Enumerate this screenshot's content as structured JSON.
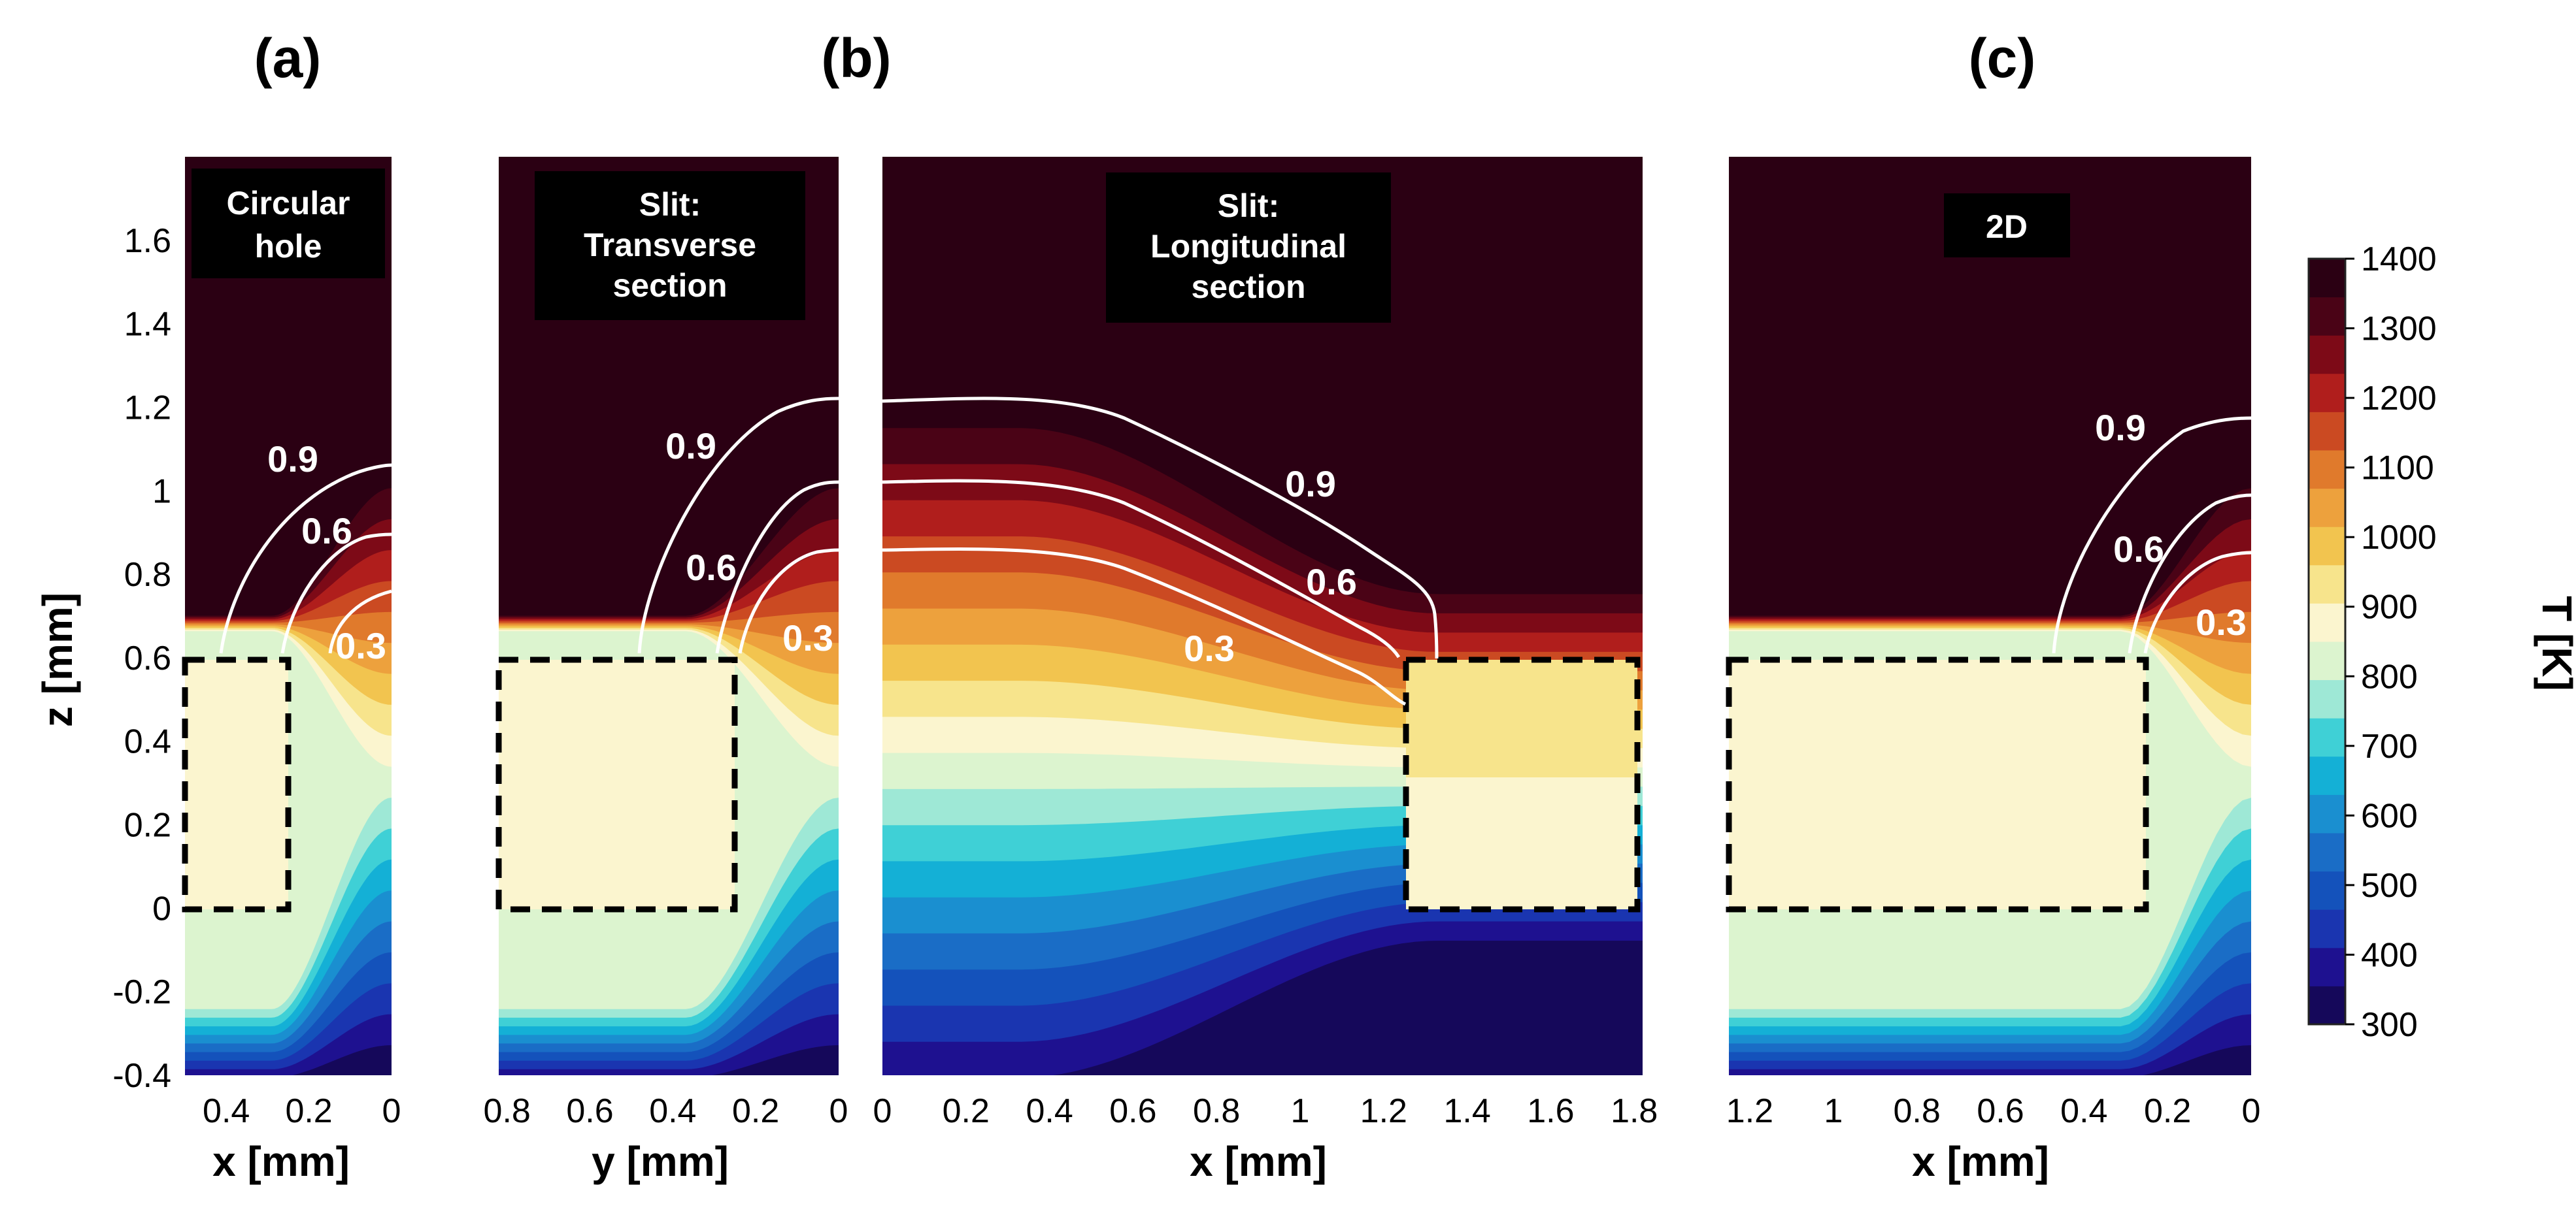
{
  "chart_data": {
    "type": "heatmap",
    "panel_labels": [
      "(a)",
      "(b)",
      "(c)"
    ],
    "colormap": [
      "#15085a",
      "#1e1190",
      "#1a35b0",
      "#1452bb",
      "#1a6dc6",
      "#1a8fd0",
      "#14b0d6",
      "#3fd0d6",
      "#9ee8d6",
      "#dcf4cf",
      "#fbf5cf",
      "#f7e48c",
      "#f2c44f",
      "#eda13d",
      "#e07a2c",
      "#cb4a22",
      "#b01e1c",
      "#7d0a17",
      "#4a0316",
      "#2b0013"
    ],
    "colorbar": {
      "label": "T [K]",
      "ticks": [
        "1400",
        "1300",
        "1200",
        "1100",
        "1000",
        "900",
        "800",
        "700",
        "600",
        "500",
        "400",
        "300"
      ],
      "range": [
        300,
        1400
      ]
    },
    "z_axis": {
      "label": "z [mm]",
      "ticks": [
        "1.6",
        "1.4",
        "1.2",
        "1",
        "0.8",
        "0.6",
        "0.4",
        "0.2",
        "0",
        "-0.2",
        "-0.4"
      ],
      "range": [
        -0.4,
        1.8
      ]
    },
    "panels": [
      {
        "id": "a",
        "title_lines": [
          "Circular",
          "hole"
        ],
        "x_label": "x [mm]",
        "x_ticks": [
          "0.4",
          "0.2",
          "0"
        ],
        "x_range": [
          0.5,
          0
        ],
        "x_reversed": true,
        "material_region": {
          "x": [
            0.5,
            0.25
          ],
          "z": [
            0,
            0.6
          ]
        },
        "contour_labels": [
          "0.9",
          "0.6",
          "0.3"
        ]
      },
      {
        "id": "b1",
        "title_lines": [
          "Slit:",
          "Transverse",
          "section"
        ],
        "x_label": "y [mm]",
        "x_ticks": [
          "0.8",
          "0.6",
          "0.4",
          "0.2",
          "0"
        ],
        "x_range": [
          0.82,
          0
        ],
        "x_reversed": true,
        "material_region": {
          "x": [
            0.82,
            0.25
          ],
          "z": [
            0,
            0.6
          ]
        },
        "contour_labels": [
          "0.9",
          "0.6",
          "0.3"
        ]
      },
      {
        "id": "b2",
        "title_lines": [
          "Slit:",
          "Longitudinal",
          "section"
        ],
        "x_label": "x [mm]",
        "x_ticks": [
          "0",
          "0.2",
          "0.4",
          "0.6",
          "0.8",
          "1",
          "1.2",
          "1.4",
          "1.6",
          "1.8"
        ],
        "x_range": [
          0,
          1.82
        ],
        "x_reversed": false,
        "material_region": {
          "x": [
            1.25,
            1.82
          ],
          "z": [
            0,
            0.6
          ]
        },
        "contour_labels": [
          "0.9",
          "0.6",
          "0.3"
        ]
      },
      {
        "id": "c",
        "title_lines": [
          "2D"
        ],
        "x_label": "x [mm]",
        "x_ticks": [
          "1.2",
          "1",
          "0.8",
          "0.6",
          "0.4",
          "0.2",
          "0"
        ],
        "x_range": [
          1.25,
          0
        ],
        "x_reversed": true,
        "material_region": {
          "x": [
            1.25,
            0.25
          ],
          "z": [
            0,
            0.6
          ]
        },
        "contour_labels": [
          "0.9",
          "0.6",
          "0.3"
        ]
      }
    ]
  }
}
